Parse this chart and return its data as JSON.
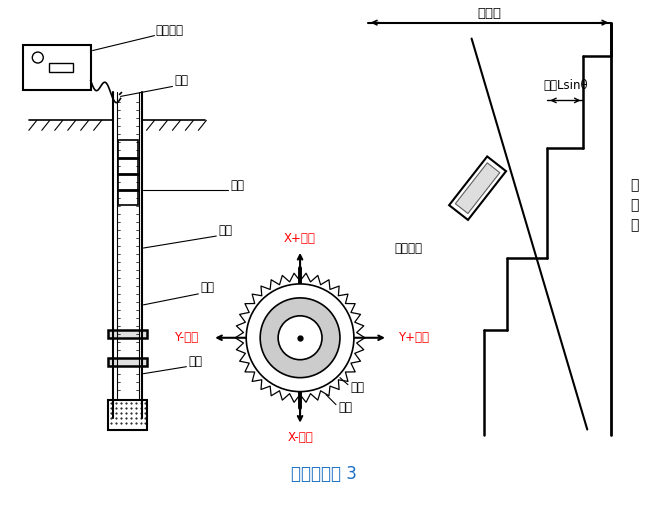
{
  "title": "测斜原理图 3",
  "title_color": "#1a6fc4",
  "bg_color": "#ffffff",
  "line_color": "#000000",
  "red_color": "#ff0000",
  "labels": {
    "device": "测读设备",
    "cable": "电缆",
    "probe": "测头",
    "borehole": "钻孔",
    "guide_tube": "导管",
    "backfill": "回填",
    "y_minus": "Y-方向",
    "y_plus": "Y+方向",
    "x_plus": "X+方向",
    "x_minus": "X-方向",
    "guide_groove": "导槽",
    "guide_wheel": "导轮",
    "total_disp": "总位移",
    "disp_sin": "位移Lsinθ",
    "meas_dist": "测读间距",
    "baseline_1": "原",
    "baseline_2": "准",
    "baseline_3": "线"
  }
}
